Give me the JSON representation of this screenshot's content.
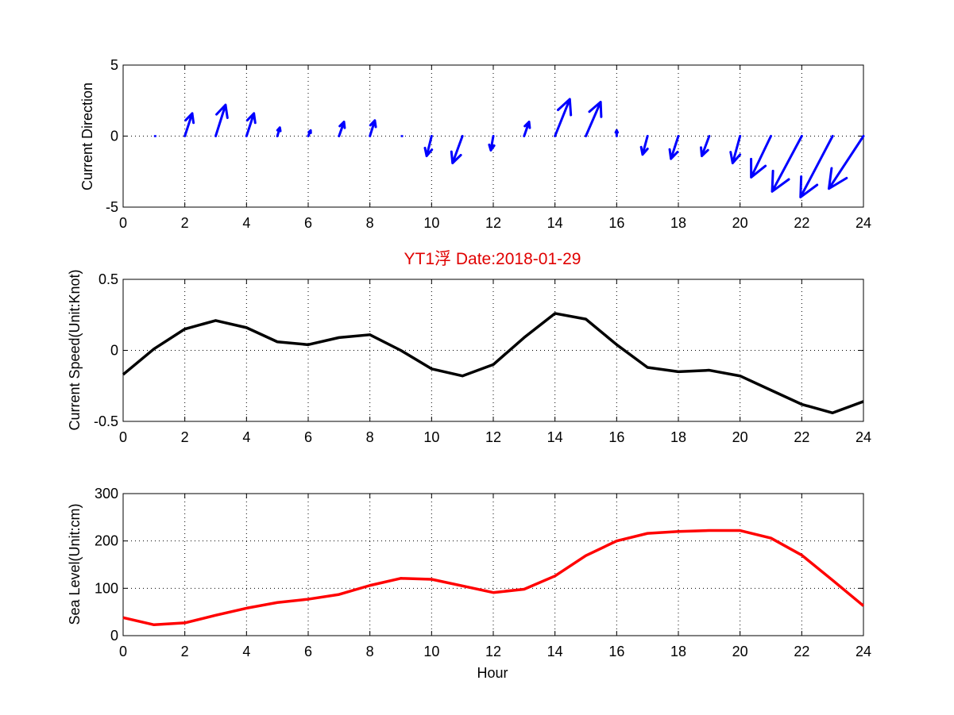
{
  "colors": {
    "arrow": "#0000ff",
    "speed": "#000000",
    "level": "#ff0000",
    "title": "#e00000"
  },
  "chart_data": [
    {
      "type": "quiver",
      "ylabel": "Current Direction",
      "xlabel": "",
      "xlim": [
        0,
        24
      ],
      "ylim": [
        -5,
        5
      ],
      "xticks": [
        0,
        2,
        4,
        6,
        8,
        10,
        12,
        14,
        16,
        18,
        20,
        22,
        24
      ],
      "yticks": [
        -5,
        0,
        5
      ],
      "grid": true,
      "x": [
        1,
        2,
        3,
        4,
        5,
        6,
        7,
        8,
        9,
        10,
        11,
        12,
        13,
        14,
        15,
        16,
        17,
        18,
        19,
        20,
        21,
        22,
        23,
        24
      ],
      "u": [
        0.0,
        0.03,
        0.04,
        0.03,
        0.01,
        0.01,
        0.02,
        0.02,
        0.0,
        -0.02,
        -0.04,
        -0.01,
        0.02,
        0.06,
        0.06,
        0.0,
        -0.02,
        -0.03,
        -0.03,
        -0.03,
        -0.08,
        -0.12,
        -0.13,
        -0.14
      ],
      "v": [
        0.0,
        1.6,
        2.2,
        1.6,
        0.6,
        0.4,
        1.0,
        1.1,
        0.0,
        -1.4,
        -1.9,
        -1.0,
        1.0,
        2.6,
        2.4,
        0.4,
        -1.3,
        -1.6,
        -1.4,
        -1.9,
        -2.9,
        -3.9,
        -4.3,
        -3.7
      ]
    },
    {
      "type": "line",
      "title": "YT1浮    Date:2018-01-29",
      "ylabel": "Current Speed(Unit:Knot)",
      "xlabel": "",
      "xlim": [
        0,
        24
      ],
      "ylim": [
        -0.5,
        0.5
      ],
      "xticks": [
        0,
        2,
        4,
        6,
        8,
        10,
        12,
        14,
        16,
        18,
        20,
        22,
        24
      ],
      "yticks": [
        -0.5,
        0,
        0.5
      ],
      "grid": true,
      "x": [
        0,
        1,
        2,
        3,
        4,
        5,
        6,
        7,
        8,
        9,
        10,
        11,
        12,
        13,
        14,
        15,
        16,
        17,
        18,
        19,
        20,
        21,
        22,
        23,
        24
      ],
      "y": [
        -0.17,
        0.01,
        0.15,
        0.21,
        0.16,
        0.06,
        0.04,
        0.09,
        0.11,
        0.0,
        -0.13,
        -0.18,
        -0.1,
        0.09,
        0.26,
        0.22,
        0.04,
        -0.12,
        -0.15,
        -0.14,
        -0.18,
        -0.28,
        -0.38,
        -0.44,
        -0.36
      ]
    },
    {
      "type": "line",
      "ylabel": "Sea Level(Unit:cm)",
      "xlabel": "Hour",
      "xlim": [
        0,
        24
      ],
      "ylim": [
        0,
        300
      ],
      "xticks": [
        0,
        2,
        4,
        6,
        8,
        10,
        12,
        14,
        16,
        18,
        20,
        22,
        24
      ],
      "yticks": [
        0,
        100,
        200,
        300
      ],
      "grid": true,
      "x": [
        0,
        1,
        2,
        3,
        4,
        5,
        6,
        7,
        8,
        9,
        10,
        11,
        12,
        13,
        14,
        15,
        16,
        17,
        18,
        19,
        20,
        21,
        22,
        23,
        24
      ],
      "y": [
        38,
        23,
        27,
        43,
        58,
        70,
        77,
        87,
        106,
        121,
        119,
        105,
        91,
        98,
        126,
        169,
        200,
        216,
        220,
        222,
        222,
        206,
        170,
        117,
        63
      ]
    }
  ]
}
